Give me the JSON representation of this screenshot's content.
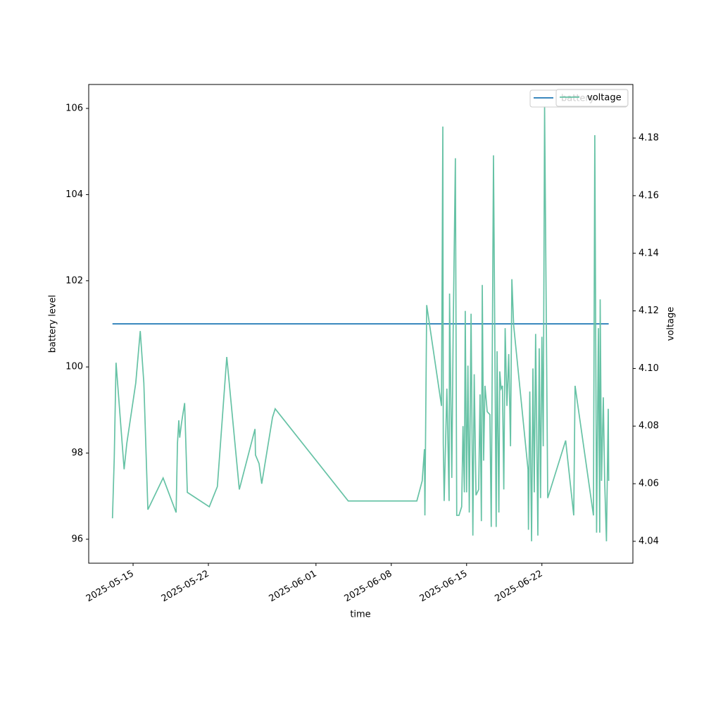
{
  "chart_data": {
    "type": "line",
    "x_label": "time",
    "y_label": "battery level",
    "y2_label": "voltage",
    "xlim": [
      "2025-05-10T21:00",
      "2025-06-30T11:00"
    ],
    "xticks": [
      "2025-05-15",
      "2025-05-22",
      "2025-06-01",
      "2025-06-08",
      "2025-06-15",
      "2025-06-22"
    ],
    "ylim": [
      95.444,
      106.556
    ],
    "yticks": [
      96,
      98,
      100,
      102,
      104,
      106
    ],
    "y2lim": [
      4.0324,
      4.1986
    ],
    "y2ticks": [
      4.04,
      4.06,
      4.08,
      {
        "value": 4.1,
        "label": "4.10"
      },
      4.12,
      4.14,
      4.16,
      4.18
    ],
    "legend": "upper right",
    "series": [
      {
        "name": "battery",
        "color": "#1f77b4",
        "x": [
          "2025-05-13T02:00",
          "2025-06-28T05:00"
        ],
        "values": [
          101,
          101
        ]
      },
      {
        "name": "voltage",
        "color": "#66c2a5",
        "axis": "y2",
        "x": [
          "2025-05-13T02:00",
          "2025-05-13T06:00",
          "2025-05-13T10:00",
          "2025-05-14T04:00",
          "2025-05-14T10:00",
          "2025-05-15T06:00",
          "2025-05-15T16:00",
          "2025-05-16T00:00",
          "2025-05-16T09:00",
          "2025-05-17T19:00",
          "2025-05-19T00:00",
          "2025-05-19T03:00",
          "2025-05-19T06:00",
          "2025-05-19T08:00",
          "2025-05-19T12:00",
          "2025-05-19T19:00",
          "2025-05-20T01:00",
          "2025-05-22T02:00",
          "2025-05-22T20:00",
          "2025-05-23T17:00",
          "2025-05-24T21:00",
          "2025-05-26T08:00",
          "2025-05-26T09:00",
          "2025-05-26T17:00",
          "2025-05-26T23:00",
          "2025-05-27T23:00",
          "2025-05-28T05:00",
          "2025-06-04T00:00",
          "2025-06-10T09:00",
          "2025-06-10T21:00",
          "2025-06-11T02:00",
          "2025-06-11T03:00",
          "2025-06-11T07:00",
          "2025-06-12T16:00",
          "2025-06-12T19:00",
          "2025-06-12T20:00",
          "2025-06-12T22:00",
          "2025-06-13T04:00",
          "2025-06-13T09:00",
          "2025-06-13T10:00",
          "2025-06-13T15:00",
          "2025-06-13T18:00",
          "2025-06-13T23:00",
          "2025-06-14T02:00",
          "2025-06-14T07:00",
          "2025-06-14T13:00",
          "2025-06-14T16:00",
          "2025-06-14T19:00",
          "2025-06-14T21:00",
          "2025-06-15T00:00",
          "2025-06-15T03:00",
          "2025-06-15T06:00",
          "2025-06-15T10:00",
          "2025-06-15T14:00",
          "2025-06-15T17:00",
          "2025-06-15T21:00",
          "2025-06-16T03:00",
          "2025-06-16T06:00",
          "2025-06-16T09:00",
          "2025-06-16T11:00",
          "2025-06-16T14:00",
          "2025-06-16T17:00",
          "2025-06-16T22:00",
          "2025-06-17T04:00",
          "2025-06-17T07:00",
          "2025-06-17T12:00",
          "2025-06-17T18:00",
          "2025-06-17T20:00",
          "2025-06-18T00:00",
          "2025-06-18T02:00",
          "2025-06-18T05:00",
          "2025-06-18T08:00",
          "2025-06-18T11:00",
          "2025-06-18T14:00",
          "2025-06-18T18:00",
          "2025-06-18T22:00",
          "2025-06-19T02:00",
          "2025-06-19T05:00",
          "2025-06-19T09:00",
          "2025-06-20T17:00",
          "2025-06-20T18:00",
          "2025-06-20T21:00",
          "2025-06-21T01:00",
          "2025-06-21T04:00",
          "2025-06-21T07:00",
          "2025-06-21T10:00",
          "2025-06-21T15:00",
          "2025-06-21T18:00",
          "2025-06-21T21:00",
          "2025-06-22T00:00",
          "2025-06-22T03:00",
          "2025-06-22T06:00",
          "2025-06-22T13:00",
          "2025-06-24T05:00",
          "2025-06-24T23:00",
          "2025-06-25T02:00",
          "2025-06-26T19:00",
          "2025-06-26T22:00",
          "2025-06-27T02:00",
          "2025-06-27T06:00",
          "2025-06-27T09:00",
          "2025-06-27T10:00",
          "2025-06-27T13:00",
          "2025-06-27T17:00",
          "2025-06-27T20:00",
          "2025-06-28T00:00",
          "2025-06-28T04:00",
          "2025-06-28T05:00"
        ],
        "values": [
          4.048,
          4.069,
          4.102,
          4.065,
          4.074,
          4.095,
          4.113,
          4.095,
          4.051,
          4.062,
          4.05,
          4.074,
          4.082,
          4.076,
          4.081,
          4.088,
          4.057,
          4.052,
          4.059,
          4.104,
          4.058,
          4.079,
          4.07,
          4.067,
          4.06,
          4.083,
          4.086,
          4.054,
          4.054,
          4.061,
          4.072,
          4.049,
          4.122,
          4.087,
          4.184,
          4.074,
          4.054,
          4.093,
          4.054,
          4.126,
          4.062,
          4.112,
          4.173,
          4.049,
          4.049,
          4.052,
          4.08,
          4.057,
          4.12,
          4.057,
          4.101,
          4.05,
          4.119,
          4.042,
          4.098,
          4.056,
          4.058,
          4.091,
          4.047,
          4.129,
          4.068,
          4.094,
          4.085,
          4.084,
          4.045,
          4.174,
          4.045,
          4.106,
          4.05,
          4.099,
          4.093,
          4.094,
          4.058,
          4.114,
          4.087,
          4.105,
          4.073,
          4.131,
          4.115,
          4.065,
          4.044,
          4.092,
          4.04,
          4.1,
          4.057,
          4.112,
          4.042,
          4.107,
          4.055,
          4.111,
          4.073,
          4.191,
          4.055,
          4.075,
          4.049,
          4.094,
          4.049,
          4.181,
          4.043,
          4.114,
          4.043,
          4.124,
          4.061,
          4.09,
          4.061,
          4.04,
          4.086,
          4.061
        ]
      }
    ]
  }
}
